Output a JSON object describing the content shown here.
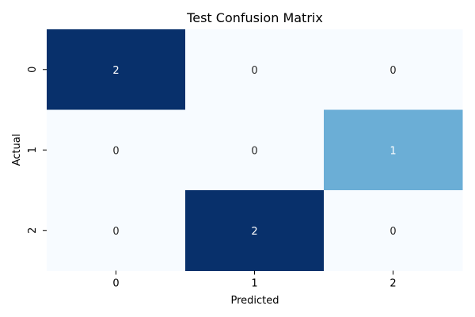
{
  "chart_data": {
    "type": "heatmap",
    "title": "Test Confusion Matrix",
    "xlabel": "Predicted",
    "ylabel": "Actual",
    "x_categories": [
      "0",
      "1",
      "2"
    ],
    "y_categories": [
      "0",
      "1",
      "2"
    ],
    "values": [
      [
        2,
        0,
        0
      ],
      [
        0,
        0,
        1
      ],
      [
        0,
        2,
        0
      ]
    ],
    "vmin": 0,
    "vmax": 2,
    "colormap": "Blues",
    "colorbar": false,
    "annotated": true,
    "colors": {
      "low": "#f7fbff",
      "mid": "#6baed6",
      "high": "#08306b",
      "text_on_light": "#262626",
      "text_on_dark": "#ffffff"
    }
  }
}
